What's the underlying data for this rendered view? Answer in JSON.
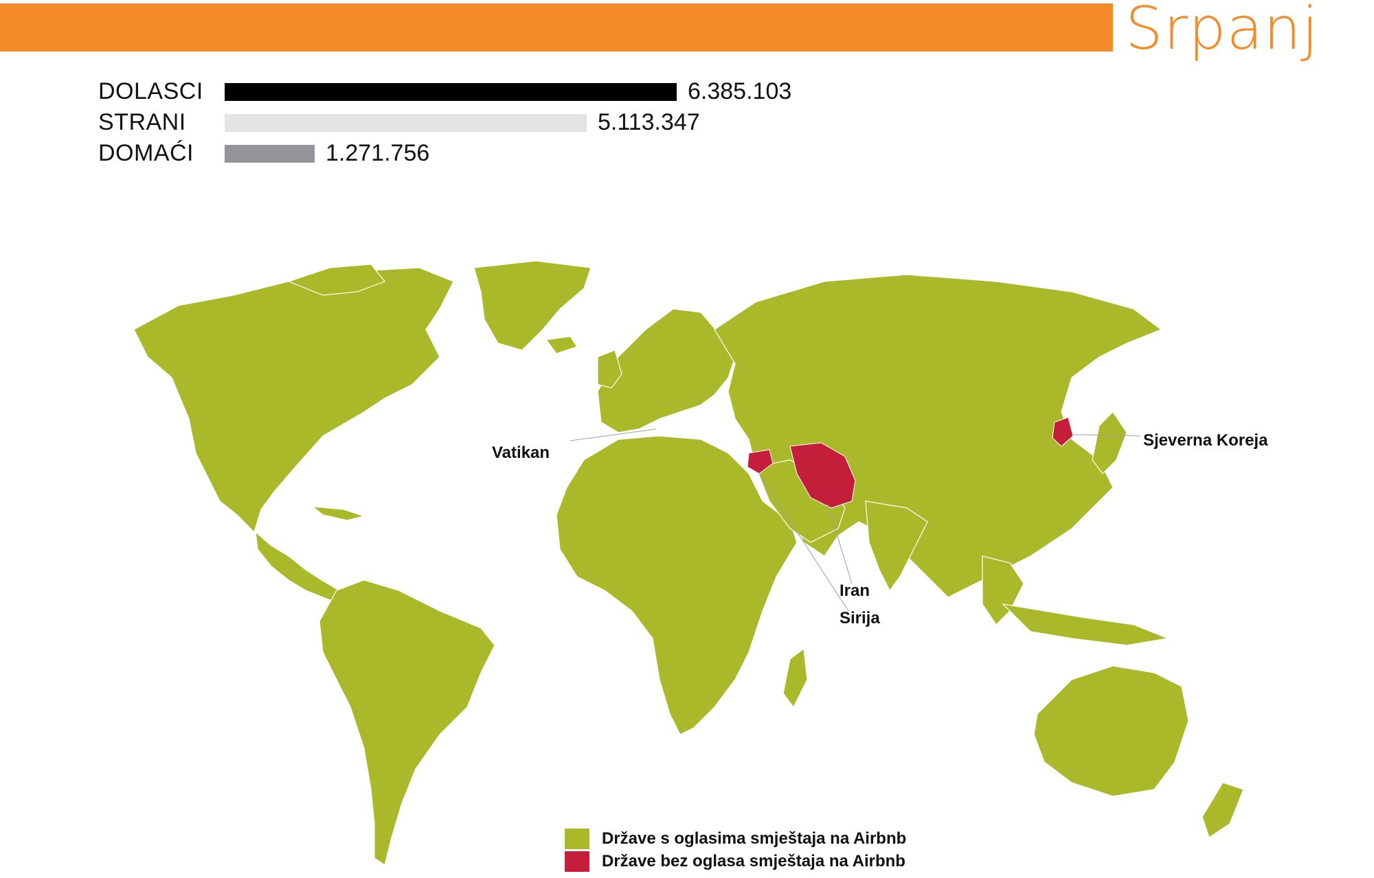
{
  "header": {
    "month": "Srpanj",
    "accent_color": "#F58A29"
  },
  "stats": {
    "max_value": 6385103,
    "rows": [
      {
        "label": "DOLASCI",
        "value": 6385103,
        "display": "6.385.103",
        "color": "#000000"
      },
      {
        "label": "STRANI",
        "value": 5113347,
        "display": "5.113.347",
        "color": "#E3E4E6"
      },
      {
        "label": "DOMAĆI",
        "value": 1271756,
        "display": "1.271.756",
        "color": "#939598"
      }
    ]
  },
  "map": {
    "land_color": "#A9B929",
    "excluded_color": "#C41E3A",
    "callouts": [
      {
        "label": "Vatikan"
      },
      {
        "label": "Sjeverna Koreja"
      },
      {
        "label": "Iran"
      },
      {
        "label": "Sirija"
      }
    ]
  },
  "legend": {
    "items": [
      {
        "label": "Države s oglasima smještaja na Airbnb",
        "color": "#A9B929"
      },
      {
        "label": "Države bez oglasa smještaja na Airbnb",
        "color": "#C41E3A"
      }
    ]
  }
}
